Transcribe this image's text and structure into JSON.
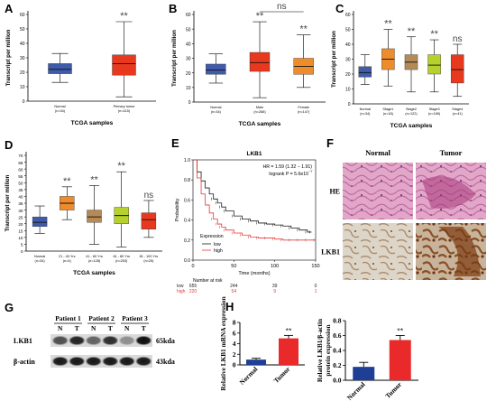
{
  "labels": {
    "A": "A",
    "B": "B",
    "C": "C",
    "D": "D",
    "E": "E",
    "F": "F",
    "G": "G",
    "H": "H"
  },
  "colors": {
    "blue": "#3f5ba9",
    "red": "#e8381e",
    "orange": "#ee8c2b",
    "tan": "#b58a57",
    "green": "#b6d12c",
    "olive": "#bcb33c",
    "navy": "#1f3f96",
    "barred": "#ea2a2a",
    "km_low": "#1a1a1a",
    "km_high": "#e23a3a",
    "he_pink": "#d88cb7",
    "ihc_bg": "#ddd7cd"
  },
  "chart_data": [
    {
      "type": "box",
      "panel": "A",
      "ylabel": "Transcript per million",
      "xlabel": "TCGA samples",
      "ylim": [
        0,
        60
      ],
      "ticks": [
        0,
        10,
        20,
        30,
        40,
        50,
        60
      ],
      "boxes": [
        {
          "name": "Normal",
          "n": "(n=34)",
          "color": "blue",
          "min": 13,
          "q1": 19,
          "med": 22,
          "q3": 26,
          "max": 33,
          "sig": ""
        },
        {
          "name": "Primary tumor",
          "n": "(n=415)",
          "color": "red",
          "min": 3,
          "q1": 18,
          "med": 26,
          "q3": 32,
          "max": 55,
          "sig": "**"
        }
      ]
    },
    {
      "type": "box",
      "panel": "B",
      "ylabel": "Transcript per million",
      "xlabel": "TCGA samples",
      "ylim": [
        0,
        60
      ],
      "ticks": [
        0,
        10,
        20,
        30,
        40,
        50,
        60
      ],
      "bracket": "ns",
      "boxes": [
        {
          "name": "Normal",
          "n": "(n=34)",
          "color": "blue",
          "min": 13,
          "q1": 19,
          "med": 22,
          "q3": 26,
          "max": 33,
          "sig": ""
        },
        {
          "name": "Male",
          "n": "(n=268)",
          "color": "red",
          "min": 3,
          "q1": 21,
          "med": 27,
          "q3": 34,
          "max": 55,
          "sig": "**"
        },
        {
          "name": "Female",
          "n": "(n=147)",
          "color": "orange",
          "min": 10,
          "q1": 19,
          "med": 24.5,
          "q3": 30,
          "max": 46,
          "sig": "**"
        }
      ]
    },
    {
      "type": "box",
      "panel": "C",
      "ylabel": "Transcript per million",
      "xlabel": "TCGA samples",
      "ylim": [
        0,
        60
      ],
      "ticks": [
        0,
        10,
        20,
        30,
        40,
        50,
        60
      ],
      "boxes": [
        {
          "name": "Normal",
          "n": "(n=34)",
          "color": "blue",
          "min": 13,
          "q1": 18,
          "med": 21,
          "q3": 25,
          "max": 33,
          "sig": ""
        },
        {
          "name": "Stage1",
          "n": "(n=18)",
          "color": "orange",
          "min": 12,
          "q1": 23,
          "med": 30,
          "q3": 37,
          "max": 50,
          "sig": "**"
        },
        {
          "name": "Stage2",
          "n": "(n=122)",
          "color": "tan",
          "min": 8,
          "q1": 23,
          "med": 28,
          "q3": 33,
          "max": 45,
          "sig": "**"
        },
        {
          "name": "Stage3",
          "n": "(n=169)",
          "color": "green",
          "min": 8,
          "q1": 20,
          "med": 26,
          "q3": 33,
          "max": 43,
          "sig": "**"
        },
        {
          "name": "Stage4",
          "n": "(n=41)",
          "color": "red",
          "min": 5,
          "q1": 14,
          "med": 23,
          "q3": 33,
          "max": 40,
          "sig": "ns"
        }
      ]
    },
    {
      "type": "box",
      "panel": "D",
      "ylabel": "Transcript per million",
      "xlabel": "TCGA samples",
      "ylim": [
        0,
        70
      ],
      "ticks": [
        0,
        5,
        10,
        15,
        20,
        25,
        30,
        35,
        40,
        45,
        50,
        55,
        60,
        65,
        70
      ],
      "boxes": [
        {
          "name": "Normal",
          "n": "(n=34)",
          "color": "blue",
          "min": 13,
          "q1": 18,
          "med": 21,
          "q3": 25,
          "max": 33,
          "sig": ""
        },
        {
          "name": "21 - 40 Yrs",
          "n": "(n=4)",
          "color": "orange",
          "min": 23,
          "q1": 30,
          "med": 35,
          "q3": 40,
          "max": 47,
          "sig": "**"
        },
        {
          "name": "41 - 60 Yrs",
          "n": "(n=128)",
          "color": "tan",
          "min": 5,
          "q1": 21,
          "med": 25,
          "q3": 30,
          "max": 48,
          "sig": "**"
        },
        {
          "name": "61 - 80 Yrs",
          "n": "(n=253)",
          "color": "green",
          "min": 3,
          "q1": 20,
          "med": 26,
          "q3": 32,
          "max": 58,
          "sig": "**"
        },
        {
          "name": "81 - 100 Yrs",
          "n": "(n=25)",
          "color": "red",
          "min": 10,
          "q1": 16,
          "med": 23,
          "q3": 28,
          "max": 37,
          "sig": "ns"
        }
      ]
    },
    {
      "type": "line",
      "panel": "E",
      "title": "LKB1",
      "xlabel": "Time (months)",
      "ylabel": "Probability",
      "xlim": [
        0,
        150
      ],
      "ylim": [
        0,
        1
      ],
      "xticks": [
        0,
        50,
        100,
        150
      ],
      "yticks": [
        0,
        0.2,
        0.4,
        0.6,
        0.8,
        1.0
      ],
      "hr_text": "HR = 1.59 (1.32 − 1.91)",
      "logrank_text": "logrank P = 5.6e10",
      "logrank_exp": "−7",
      "legend_title": "Expression",
      "series": [
        {
          "name": "low",
          "color": "km_low",
          "x": [
            0,
            5,
            10,
            15,
            20,
            25,
            30,
            35,
            40,
            50,
            60,
            70,
            80,
            90,
            100,
            110,
            120,
            130,
            140,
            145
          ],
          "y": [
            1.0,
            0.88,
            0.79,
            0.72,
            0.66,
            0.61,
            0.57,
            0.53,
            0.49,
            0.44,
            0.41,
            0.39,
            0.37,
            0.36,
            0.35,
            0.34,
            0.32,
            0.3,
            0.28,
            0.28
          ]
        },
        {
          "name": "high",
          "color": "km_high",
          "x": [
            0,
            5,
            10,
            15,
            20,
            25,
            30,
            35,
            40,
            50,
            60,
            70,
            80,
            90,
            100,
            110,
            120,
            130,
            140,
            150
          ],
          "y": [
            1.0,
            0.82,
            0.66,
            0.55,
            0.47,
            0.41,
            0.36,
            0.33,
            0.3,
            0.27,
            0.25,
            0.23,
            0.22,
            0.22,
            0.21,
            0.2,
            0.2,
            0.2,
            0.2,
            0.2
          ]
        }
      ],
      "risk_title": "Number at risk",
      "risk": [
        {
          "name": "low",
          "color": "km_low",
          "values": [
            "655",
            "244",
            "39",
            "0"
          ]
        },
        {
          "name": "high",
          "color": "km_high",
          "values": [
            "220",
            "54",
            "9",
            "1"
          ]
        }
      ]
    },
    {
      "type": "bar",
      "panel": "H-left",
      "ylabel": "Relative LKB1 mRNA expression",
      "categories": [
        "Normal",
        "Tumor"
      ],
      "values": [
        1.0,
        5.0
      ],
      "errors": [
        0.25,
        0.55
      ],
      "colors": [
        "navy",
        "barred"
      ],
      "ylim": [
        0,
        8
      ],
      "ticks": [
        0,
        2,
        4,
        6,
        8
      ],
      "sig": [
        "",
        "**"
      ]
    },
    {
      "type": "bar",
      "panel": "H-right",
      "ylabel": "Relative LKB1/β-actin protein expression",
      "categories": [
        "Normal",
        "Tumor"
      ],
      "values": [
        0.18,
        0.54
      ],
      "errors": [
        0.06,
        0.06
      ],
      "colors": [
        "navy",
        "barred"
      ],
      "ylim": [
        0,
        0.8
      ],
      "ticks": [
        "0.0",
        "0.2",
        "0.4",
        "0.6",
        "0.8"
      ],
      "sig": [
        "",
        "**"
      ]
    }
  ],
  "histology": {
    "col_normal": "Normal",
    "col_tumor": "Tumor",
    "row_he": "HE",
    "row_lkb1": "LKB1"
  },
  "western": {
    "patients": [
      "Patient 1",
      "Patient 2",
      "Patient 3"
    ],
    "lane_labels": [
      "N",
      "T",
      "N",
      "T",
      "N",
      "T"
    ],
    "rows": [
      {
        "name": "LKB1",
        "size": "65kda",
        "intensity": [
          0.65,
          0.85,
          0.55,
          0.8,
          0.35,
          0.95
        ]
      },
      {
        "name": "β-actin",
        "size": "43kda",
        "intensity": [
          0.9,
          0.9,
          0.9,
          0.9,
          0.9,
          0.9
        ]
      }
    ]
  }
}
